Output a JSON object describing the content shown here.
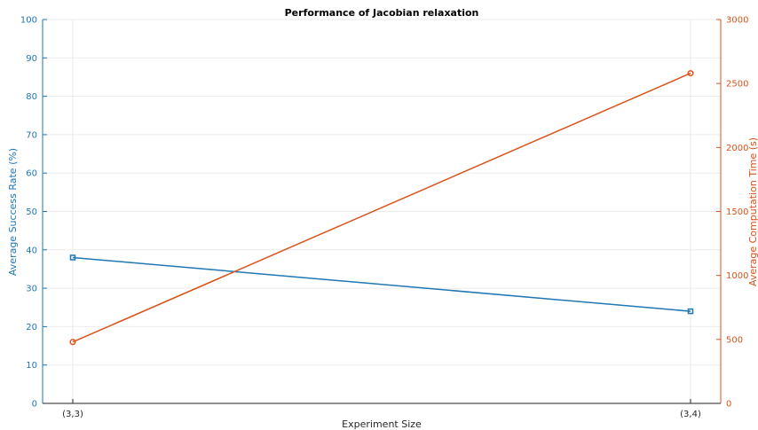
{
  "chart_data": {
    "type": "line",
    "title": "Performance of Jacobian relaxation",
    "xlabel": "Experiment Size",
    "categories": [
      "(3,3)",
      "(3,4)"
    ],
    "y_left": {
      "label": "Average Success Rate (%)",
      "lim": [
        0,
        100
      ],
      "ticks": [
        0,
        10,
        20,
        30,
        40,
        50,
        60,
        70,
        80,
        90,
        100
      ],
      "color": "#1f77b4"
    },
    "y_right": {
      "label": "Average Computation Time (s)",
      "lim": [
        0,
        3000
      ],
      "ticks": [
        0,
        500,
        1000,
        1500,
        2000,
        2500,
        3000
      ],
      "color": "#d95319"
    },
    "series": [
      {
        "axis": "left",
        "values": [
          38,
          24
        ],
        "color": "#1f77b4",
        "marker": "square"
      },
      {
        "axis": "right",
        "values": [
          480,
          2580
        ],
        "color": "#d95319",
        "marker": "circle"
      }
    ],
    "grid": true
  }
}
